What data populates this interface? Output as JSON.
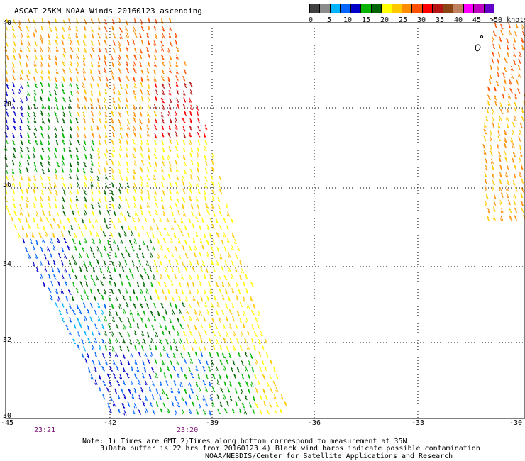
{
  "title": "ASCAT 25KM NOAA Winds 20160123 ascending",
  "colorbar": {
    "colors": [
      "#404040",
      "#8c8c8c",
      "#00b4ff",
      "#0064ff",
      "#0000c8",
      "#00b400",
      "#006400",
      "#ffff00",
      "#ffc800",
      "#ff8c00",
      "#ff5000",
      "#ff0000",
      "#b41414",
      "#8b4513",
      "#c08060",
      "#ff00ff",
      "#c000c0",
      "#6400c8"
    ],
    "labels": [
      "0",
      "5",
      "10",
      "15",
      "20",
      "25",
      "30",
      "35",
      "40",
      "45",
      ">50 knots"
    ]
  },
  "lat_labels": [
    "40",
    "38",
    "36",
    "34",
    "32",
    "30"
  ],
  "lon_labels": [
    "-45",
    "-42",
    "-39",
    "-36",
    "-33",
    "-30"
  ],
  "times": [
    "23:21",
    "23:20"
  ],
  "notes": [
    "Note: 1) Times are GMT 2)Times along bottom correspond to measurement at 35N",
    "3)Data buffer is 22 hrs from 20160123 4) Black wind barbs indicate possible contamination",
    "NOAA/NESDIS/Center for Satellite Applications and Research"
  ]
}
